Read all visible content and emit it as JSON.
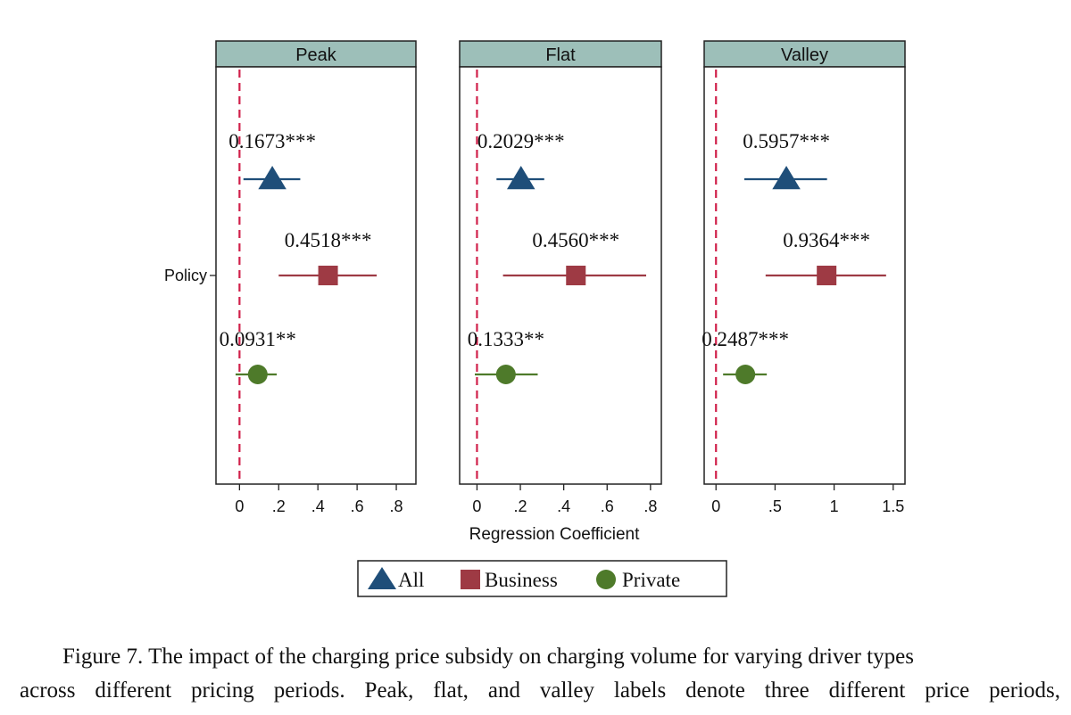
{
  "chart_data": {
    "type": "forest",
    "y_label": "Policy",
    "x_label": "Regression Coefficient",
    "reference_line": 0,
    "panels": [
      {
        "title": "Peak",
        "xlim": [
          -0.12,
          0.9
        ],
        "ticks": [
          0,
          0.2,
          0.4,
          0.6,
          0.8
        ],
        "tick_labels": [
          "0",
          ".2",
          ".4",
          ".6",
          ".8"
        ],
        "estimates": [
          {
            "series": "All",
            "value": 0.1673,
            "ci": [
              0.02,
              0.31
            ],
            "label": "0.1673***"
          },
          {
            "series": "Business",
            "value": 0.4518,
            "ci": [
              0.2,
              0.7
            ],
            "label": "0.4518***"
          },
          {
            "series": "Private",
            "value": 0.0931,
            "ci": [
              -0.02,
              0.19
            ],
            "label": "0.0931**"
          }
        ]
      },
      {
        "title": "Flat",
        "xlim": [
          -0.08,
          0.85
        ],
        "ticks": [
          0,
          0.2,
          0.4,
          0.6,
          0.8
        ],
        "tick_labels": [
          "0",
          ".2",
          ".4",
          ".6",
          ".8"
        ],
        "estimates": [
          {
            "series": "All",
            "value": 0.2029,
            "ci": [
              0.09,
              0.31
            ],
            "label": "0.2029***"
          },
          {
            "series": "Business",
            "value": 0.456,
            "ci": [
              0.12,
              0.78
            ],
            "label": "0.4560***"
          },
          {
            "series": "Private",
            "value": 0.1333,
            "ci": [
              -0.01,
              0.28
            ],
            "label": "0.1333**"
          }
        ]
      },
      {
        "title": "Valley",
        "xlim": [
          -0.1,
          1.6
        ],
        "ticks": [
          0,
          0.5,
          1,
          1.5
        ],
        "tick_labels": [
          "0",
          ".5",
          "1",
          "1.5"
        ],
        "estimates": [
          {
            "series": "All",
            "value": 0.5957,
            "ci": [
              0.24,
              0.94
            ],
            "label": "0.5957***"
          },
          {
            "series": "Business",
            "value": 0.9364,
            "ci": [
              0.42,
              1.44
            ],
            "label": "0.9364***"
          },
          {
            "series": "Private",
            "value": 0.2487,
            "ci": [
              0.06,
              0.43
            ],
            "label": "0.2487***"
          }
        ]
      }
    ],
    "legend": [
      {
        "name": "All",
        "marker": "triangle",
        "color": "#1f4e79"
      },
      {
        "name": "Business",
        "marker": "square",
        "color": "#9e3a44"
      },
      {
        "name": "Private",
        "marker": "circle",
        "color": "#4e7a2a"
      }
    ],
    "colors": {
      "strip": "#9dbfb9",
      "reference": "#d0204a",
      "axis": "#222222"
    }
  },
  "caption": {
    "line1": "Figure 7. The impact of the charging price subsidy on charging volume for varying driver types",
    "line2": "across different pricing periods. Peak, flat, and valley labels denote three different price periods,"
  }
}
